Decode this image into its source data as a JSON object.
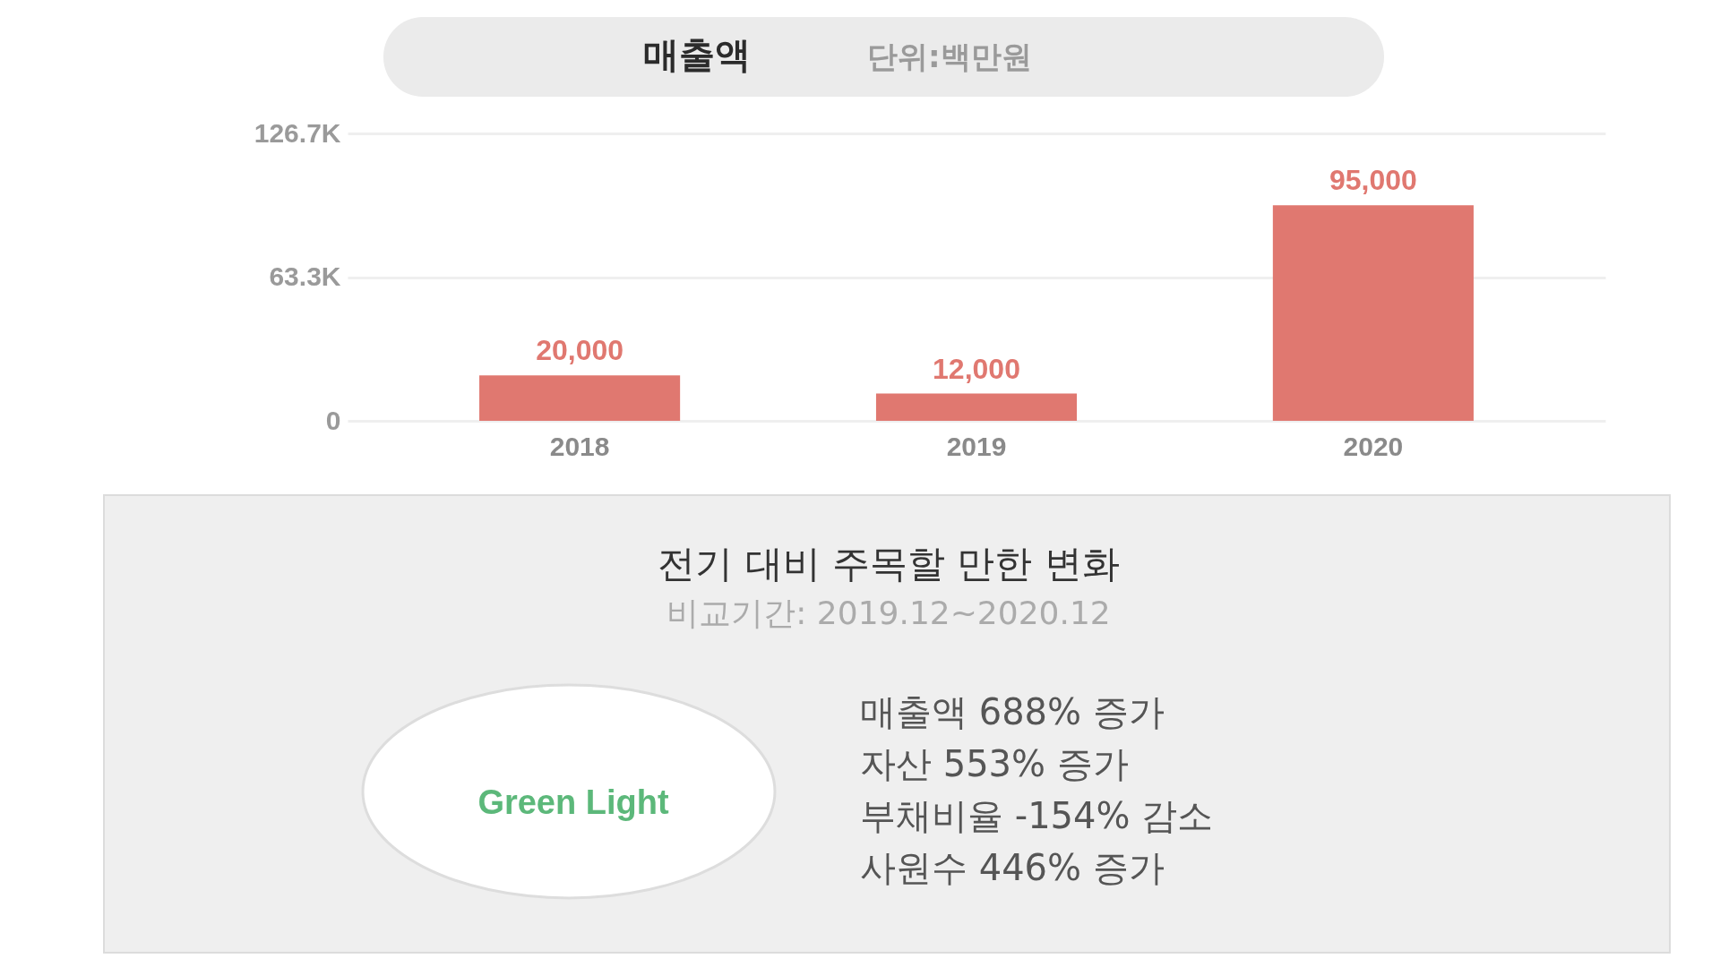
{
  "chart_data": [
    {
      "type": "bar",
      "title": "매출액",
      "subtitle": "단위:백만원",
      "categories": [
        "2018",
        "2019",
        "2020"
      ],
      "values": [
        20000,
        12000,
        95000
      ],
      "value_labels": [
        "20,000",
        "12,000",
        "95,000"
      ],
      "color": "#e07870",
      "ylim": [
        0,
        126700
      ],
      "yticks": [
        0,
        {
          "value": 63300,
          "label": "63.3K"
        },
        {
          "value": 126700,
          "label": "126.7K"
        }
      ],
      "grid": "y"
    },
    {
      "type": "other",
      "title": "전기 대비 주목할 만한 변화",
      "subtitle": "비교기간: 2019.12~2020.12",
      "annotations": [
        "Green Light",
        "매출액 688% 증가",
        "자산 553% 증가",
        "부채비율 -154% 감소",
        "사원수 446% 증가"
      ]
    }
  ]
}
